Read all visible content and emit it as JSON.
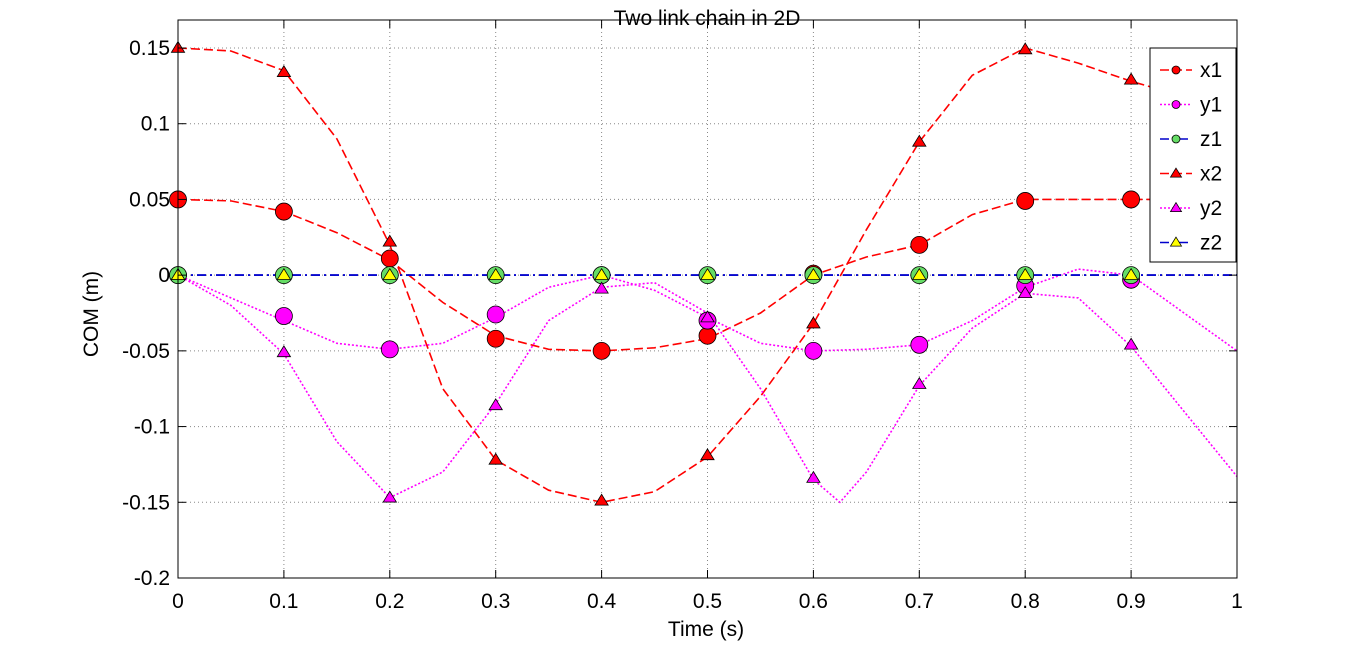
{
  "chart_data": {
    "type": "line",
    "title": "Two link chain in 2D",
    "xlabel": "Time (s)",
    "ylabel": "COM (m)",
    "xlim": [
      0,
      1
    ],
    "ylim": [
      -0.2,
      0.15
    ],
    "xticks": [
      0,
      0.1,
      0.2,
      0.3,
      0.4,
      0.5,
      0.6,
      0.7,
      0.8,
      0.9,
      1
    ],
    "xtick_labels": [
      "0",
      "0.1",
      "0.2",
      "0.3",
      "0.4",
      "0.5",
      "0.6",
      "0.7",
      "0.8",
      "0.9",
      "1"
    ],
    "yticks": [
      -0.2,
      -0.15,
      -0.1,
      -0.05,
      0,
      0.05,
      0.1,
      0.15
    ],
    "ytick_labels": [
      "-0.2",
      "-0.15",
      "-0.1",
      "-0.05",
      "0",
      "0.05",
      "0.1",
      "0.15"
    ],
    "grid": true,
    "legend_position": "top-right",
    "series": [
      {
        "name": "x1",
        "color": "#ff0000",
        "line_style": "dashed",
        "marker": "circle",
        "marker_fill": "#ff0000",
        "curve_x": [
          0,
          0.05,
          0.1,
          0.15,
          0.2,
          0.25,
          0.3,
          0.35,
          0.4,
          0.45,
          0.5,
          0.55,
          0.6,
          0.65,
          0.7,
          0.75,
          0.8,
          0.85,
          0.9,
          0.95,
          1
        ],
        "curve_y": [
          0.05,
          0.049,
          0.042,
          0.028,
          0.01,
          -0.018,
          -0.04,
          -0.049,
          -0.05,
          -0.048,
          -0.042,
          -0.025,
          0.0,
          0.012,
          0.02,
          0.04,
          0.05,
          0.05,
          0.05,
          0.05,
          0.05
        ],
        "points_x": [
          0,
          0.1,
          0.2,
          0.3,
          0.4,
          0.5,
          0.6,
          0.7,
          0.8,
          0.9
        ],
        "points_y": [
          0.05,
          0.042,
          0.011,
          -0.042,
          -0.05,
          -0.04,
          0.001,
          0.02,
          0.049,
          0.05
        ]
      },
      {
        "name": "y1",
        "color": "#ff00ff",
        "line_style": "dotted",
        "marker": "circle",
        "marker_fill": "#ff00ff",
        "curve_x": [
          0,
          0.05,
          0.1,
          0.15,
          0.2,
          0.25,
          0.3,
          0.35,
          0.4,
          0.45,
          0.5,
          0.55,
          0.6,
          0.65,
          0.7,
          0.75,
          0.8,
          0.85,
          0.9,
          0.95,
          1
        ],
        "curve_y": [
          0.0,
          -0.015,
          -0.03,
          -0.045,
          -0.049,
          -0.045,
          -0.028,
          -0.008,
          0.0,
          -0.01,
          -0.028,
          -0.045,
          -0.05,
          -0.049,
          -0.046,
          -0.03,
          -0.008,
          0.004,
          0.0,
          -0.025,
          -0.05
        ],
        "points_x": [
          0,
          0.1,
          0.2,
          0.3,
          0.4,
          0.5,
          0.6,
          0.7,
          0.8,
          0.9
        ],
        "points_y": [
          0,
          -0.027,
          -0.049,
          -0.026,
          0,
          -0.03,
          -0.05,
          -0.046,
          -0.007,
          -0.003
        ]
      },
      {
        "name": "z1",
        "color": "#0000cc",
        "line_style": "dashdot",
        "marker": "circle",
        "marker_fill": "#66dd66",
        "curve_x": [
          0,
          1
        ],
        "curve_y": [
          0,
          0
        ],
        "points_x": [
          0,
          0.1,
          0.2,
          0.3,
          0.4,
          0.5,
          0.6,
          0.7,
          0.8,
          0.9
        ],
        "points_y": [
          0,
          0,
          0,
          0,
          0,
          0,
          0,
          0,
          0,
          0
        ]
      },
      {
        "name": "x2",
        "color": "#ff0000",
        "line_style": "dashed",
        "marker": "triangle",
        "marker_fill": "#ff0000",
        "curve_x": [
          0,
          0.05,
          0.1,
          0.15,
          0.2,
          0.25,
          0.3,
          0.35,
          0.4,
          0.45,
          0.5,
          0.55,
          0.6,
          0.65,
          0.7,
          0.75,
          0.8,
          0.85,
          0.9,
          0.95,
          1
        ],
        "curve_y": [
          0.15,
          0.148,
          0.135,
          0.09,
          0.02,
          -0.075,
          -0.122,
          -0.142,
          -0.15,
          -0.143,
          -0.12,
          -0.08,
          -0.032,
          0.03,
          0.088,
          0.132,
          0.15,
          0.14,
          0.128,
          0.118,
          0.11
        ],
        "points_x": [
          0,
          0.1,
          0.2,
          0.3,
          0.4,
          0.5,
          0.6,
          0.7,
          0.8,
          0.9
        ],
        "points_y": [
          0.15,
          0.134,
          0.022,
          -0.122,
          -0.149,
          -0.119,
          -0.032,
          0.088,
          0.149,
          0.129
        ]
      },
      {
        "name": "y2",
        "color": "#ff00ff",
        "line_style": "dotted",
        "marker": "triangle",
        "marker_fill": "#ff00ff",
        "curve_x": [
          0,
          0.05,
          0.1,
          0.15,
          0.2,
          0.25,
          0.3,
          0.35,
          0.4,
          0.45,
          0.5,
          0.55,
          0.6,
          0.625,
          0.65,
          0.7,
          0.75,
          0.8,
          0.85,
          0.9,
          0.95,
          1
        ],
        "curve_y": [
          0.0,
          -0.02,
          -0.052,
          -0.11,
          -0.147,
          -0.13,
          -0.085,
          -0.03,
          -0.008,
          -0.005,
          -0.025,
          -0.075,
          -0.135,
          -0.15,
          -0.13,
          -0.073,
          -0.035,
          -0.012,
          -0.015,
          -0.047,
          -0.09,
          -0.133
        ],
        "points_x": [
          0,
          0.1,
          0.2,
          0.3,
          0.4,
          0.5,
          0.6,
          0.7,
          0.8,
          0.9
        ],
        "points_y": [
          0,
          -0.051,
          -0.147,
          -0.086,
          -0.009,
          -0.028,
          -0.134,
          -0.072,
          -0.012,
          -0.046
        ]
      },
      {
        "name": "z2",
        "color": "#0000cc",
        "line_style": "dashdot",
        "marker": "triangle",
        "marker_fill": "#ffff00",
        "curve_x": [
          0,
          1
        ],
        "curve_y": [
          0,
          0
        ],
        "points_x": [
          0,
          0.1,
          0.2,
          0.3,
          0.4,
          0.5,
          0.6,
          0.7,
          0.8,
          0.9
        ],
        "points_y": [
          0,
          0,
          0,
          0,
          0,
          0,
          0,
          0,
          0,
          0
        ]
      }
    ]
  }
}
